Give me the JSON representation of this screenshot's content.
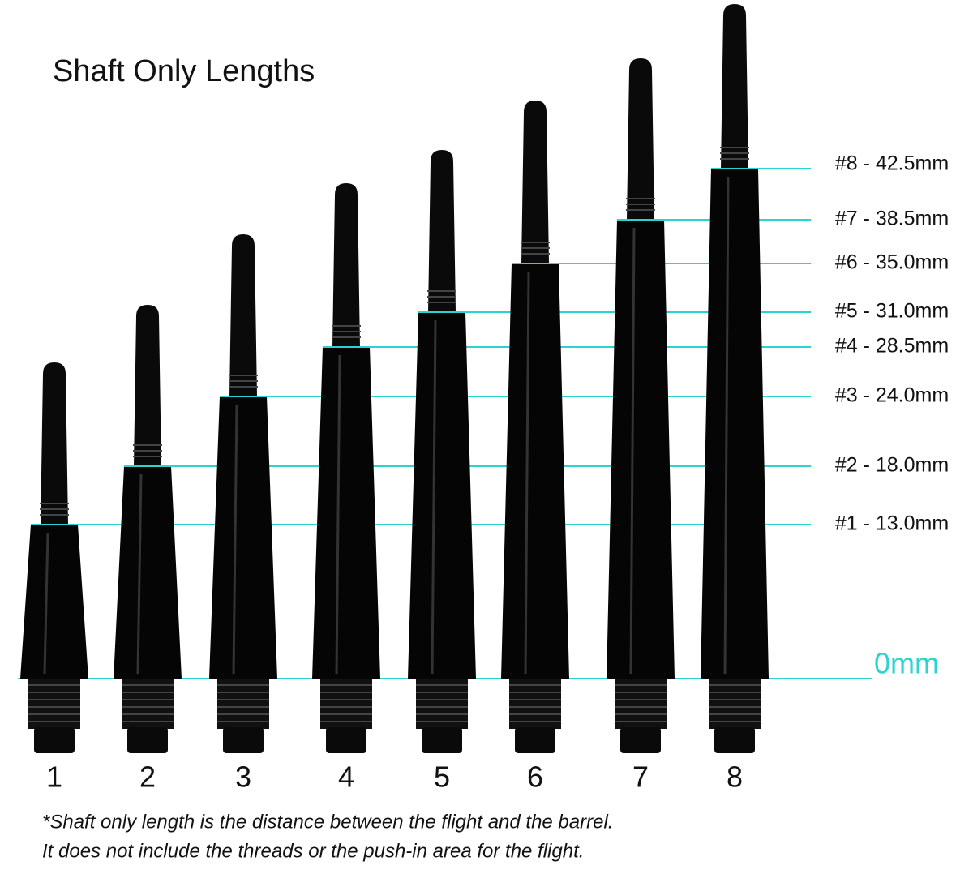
{
  "title": "Shaft Only Lengths",
  "zero_label": "0mm",
  "shafts": [
    {
      "number": "1",
      "length_label": "#1 - 13.0mm"
    },
    {
      "number": "2",
      "length_label": "#2 - 18.0mm"
    },
    {
      "number": "3",
      "length_label": "#3 - 24.0mm"
    },
    {
      "number": "4",
      "length_label": "#4 - 28.5mm"
    },
    {
      "number": "5",
      "length_label": "#5 - 31.0mm"
    },
    {
      "number": "6",
      "length_label": "#6 - 35.0mm"
    },
    {
      "number": "7",
      "length_label": "#7 - 38.5mm"
    },
    {
      "number": "8",
      "length_label": "#8 - 42.5mm"
    }
  ],
  "footnote": [
    "*Shaft only length is the distance between the flight and the barrel.",
    "It does not include the threads or the push-in area for the flight."
  ]
}
